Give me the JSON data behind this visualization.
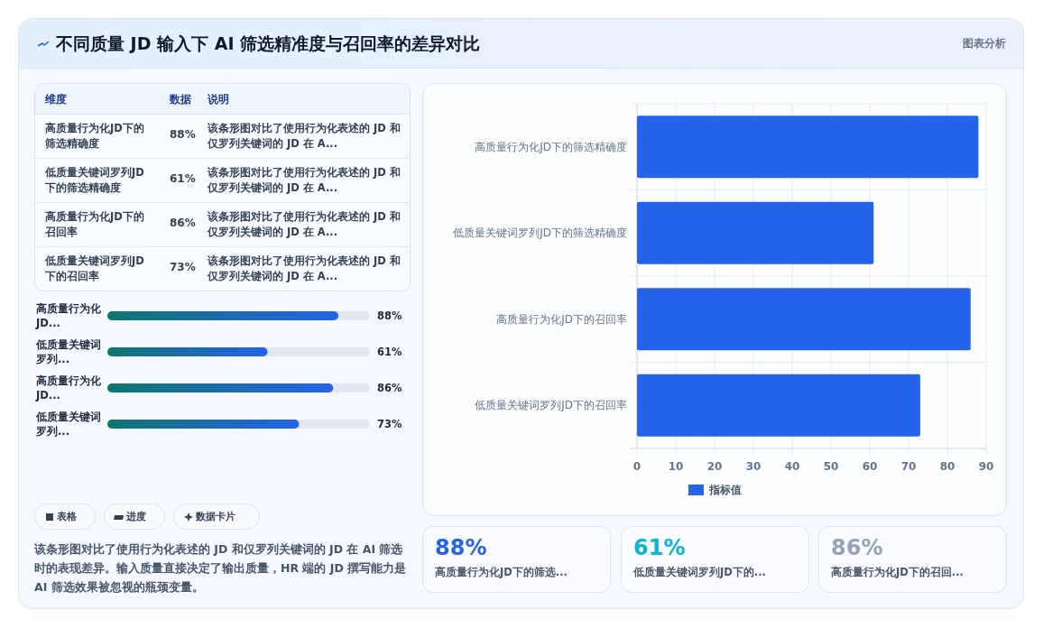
{
  "chart_data": [
    {
      "type": "other",
      "title": "不同质量 JD 输入下 AI 筛选精准度与召回率的差异对比",
      "categories": [
        "高质量行为化JD下的筛选精确度",
        "低质量关键词罗列JD下的筛选精确度",
        "高质量行为化JD下的召回率",
        "低质量关键词罗列JD下的召回率"
      ],
      "value_labels": [
        "88%",
        "61%",
        "86%",
        "73%"
      ],
      "annotations": [
        "图表分析",
        "维度",
        "数据",
        "说明",
        "该条形图对比了使用行为化表述的 JD 和仅罗列关键词的 JD 在 A...",
        "该条形图对比了使用行为化表述的 JD 和仅罗列关键词的 JD 在 A...",
        "该条形图对比了使用行为化表述的 JD 和仅罗列关键词的 JD 在 A...",
        "该条形图对比了使用行为化表述的 JD 和仅罗列关键词的 JD 在 A..."
      ]
    },
    {
      "type": "bar",
      "orientation": "horizontal",
      "categories": [
        "高质量行为化JD...",
        "低质量关键词罗列...",
        "高质量行为化JD...",
        "低质量关键词罗列..."
      ],
      "values": [
        88,
        61,
        86,
        73
      ],
      "value_labels": [
        "88%",
        "61%",
        "86%",
        "73%"
      ],
      "color": "#2563eb",
      "xlim": [
        0,
        100
      ]
    },
    {
      "type": "other",
      "annotations": [
        "表格",
        "进度",
        "数据卡片",
        "该条形图对比了使用行为化表述的 JD 和仅罗列关键词的 JD 在 AI 筛选时的表现差异。输入质量直接决定了输出质量，HR 端的 JD 撰写能力是 AI 筛选效果被忽视的瓶颈变量。"
      ]
    },
    {
      "type": "bar",
      "orientation": "horizontal",
      "categories": [
        "高质量行为化JD下的筛选精确度",
        "低质量关键词罗列JD下的筛选精确度",
        "高质量行为化JD下的召回率",
        "低质量关键词罗列JD下的召回率"
      ],
      "series": [
        {
          "name": "指标值",
          "color": "#2563eb",
          "values": [
            88,
            61,
            86,
            73
          ]
        }
      ],
      "xlim": [
        0,
        90
      ],
      "xticks": [
        0,
        10,
        20,
        30,
        40,
        50,
        60,
        70,
        80,
        90
      ],
      "grid": true,
      "legend": "bottom"
    },
    {
      "type": "other",
      "categories": [
        "高质量行为化JD下的筛选...",
        "低质量关键词罗列JD下的...",
        "高质量行为化JD下的召回..."
      ],
      "value_labels": [
        "88%",
        "61%",
        "86%"
      ]
    }
  ]
}
